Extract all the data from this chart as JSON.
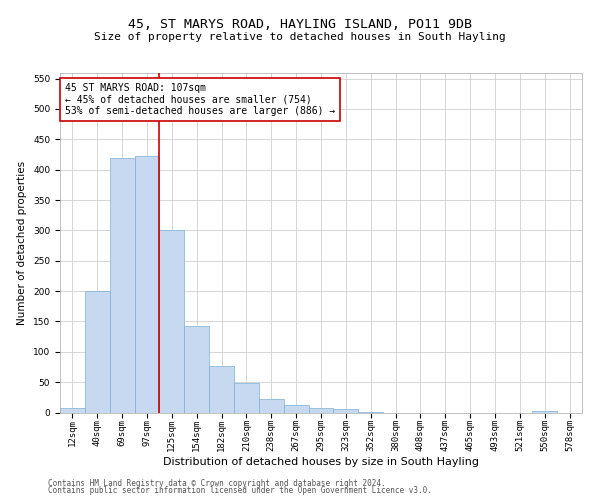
{
  "title": "45, ST MARYS ROAD, HAYLING ISLAND, PO11 9DB",
  "subtitle": "Size of property relative to detached houses in South Hayling",
  "xlabel": "Distribution of detached houses by size in South Hayling",
  "ylabel": "Number of detached properties",
  "categories": [
    "12sqm",
    "40sqm",
    "69sqm",
    "97sqm",
    "125sqm",
    "154sqm",
    "182sqm",
    "210sqm",
    "238sqm",
    "267sqm",
    "295sqm",
    "323sqm",
    "352sqm",
    "380sqm",
    "408sqm",
    "437sqm",
    "465sqm",
    "493sqm",
    "521sqm",
    "550sqm",
    "578sqm"
  ],
  "values": [
    8,
    200,
    420,
    422,
    300,
    143,
    77,
    48,
    23,
    12,
    8,
    6,
    1,
    0,
    0,
    0,
    0,
    0,
    0,
    3,
    0
  ],
  "bar_color": "#c6d9f0",
  "bar_edge_color": "#7bafd4",
  "bar_width": 1.0,
  "vline_x": 3.5,
  "vline_color": "#cc0000",
  "annotation_text": "45 ST MARYS ROAD: 107sqm\n← 45% of detached houses are smaller (754)\n53% of semi-detached houses are larger (886) →",
  "annotation_box_color": "#ffffff",
  "annotation_box_edge_color": "#cc0000",
  "ylim": [
    0,
    560
  ],
  "yticks": [
    0,
    50,
    100,
    150,
    200,
    250,
    300,
    350,
    400,
    450,
    500,
    550
  ],
  "grid_color": "#d0d0d0",
  "background_color": "#ffffff",
  "footer_line1": "Contains HM Land Registry data © Crown copyright and database right 2024.",
  "footer_line2": "Contains public sector information licensed under the Open Government Licence v3.0.",
  "title_fontsize": 9.5,
  "subtitle_fontsize": 8,
  "xlabel_fontsize": 8,
  "ylabel_fontsize": 7.5,
  "tick_fontsize": 6.5,
  "annotation_fontsize": 7,
  "footer_fontsize": 5.5
}
